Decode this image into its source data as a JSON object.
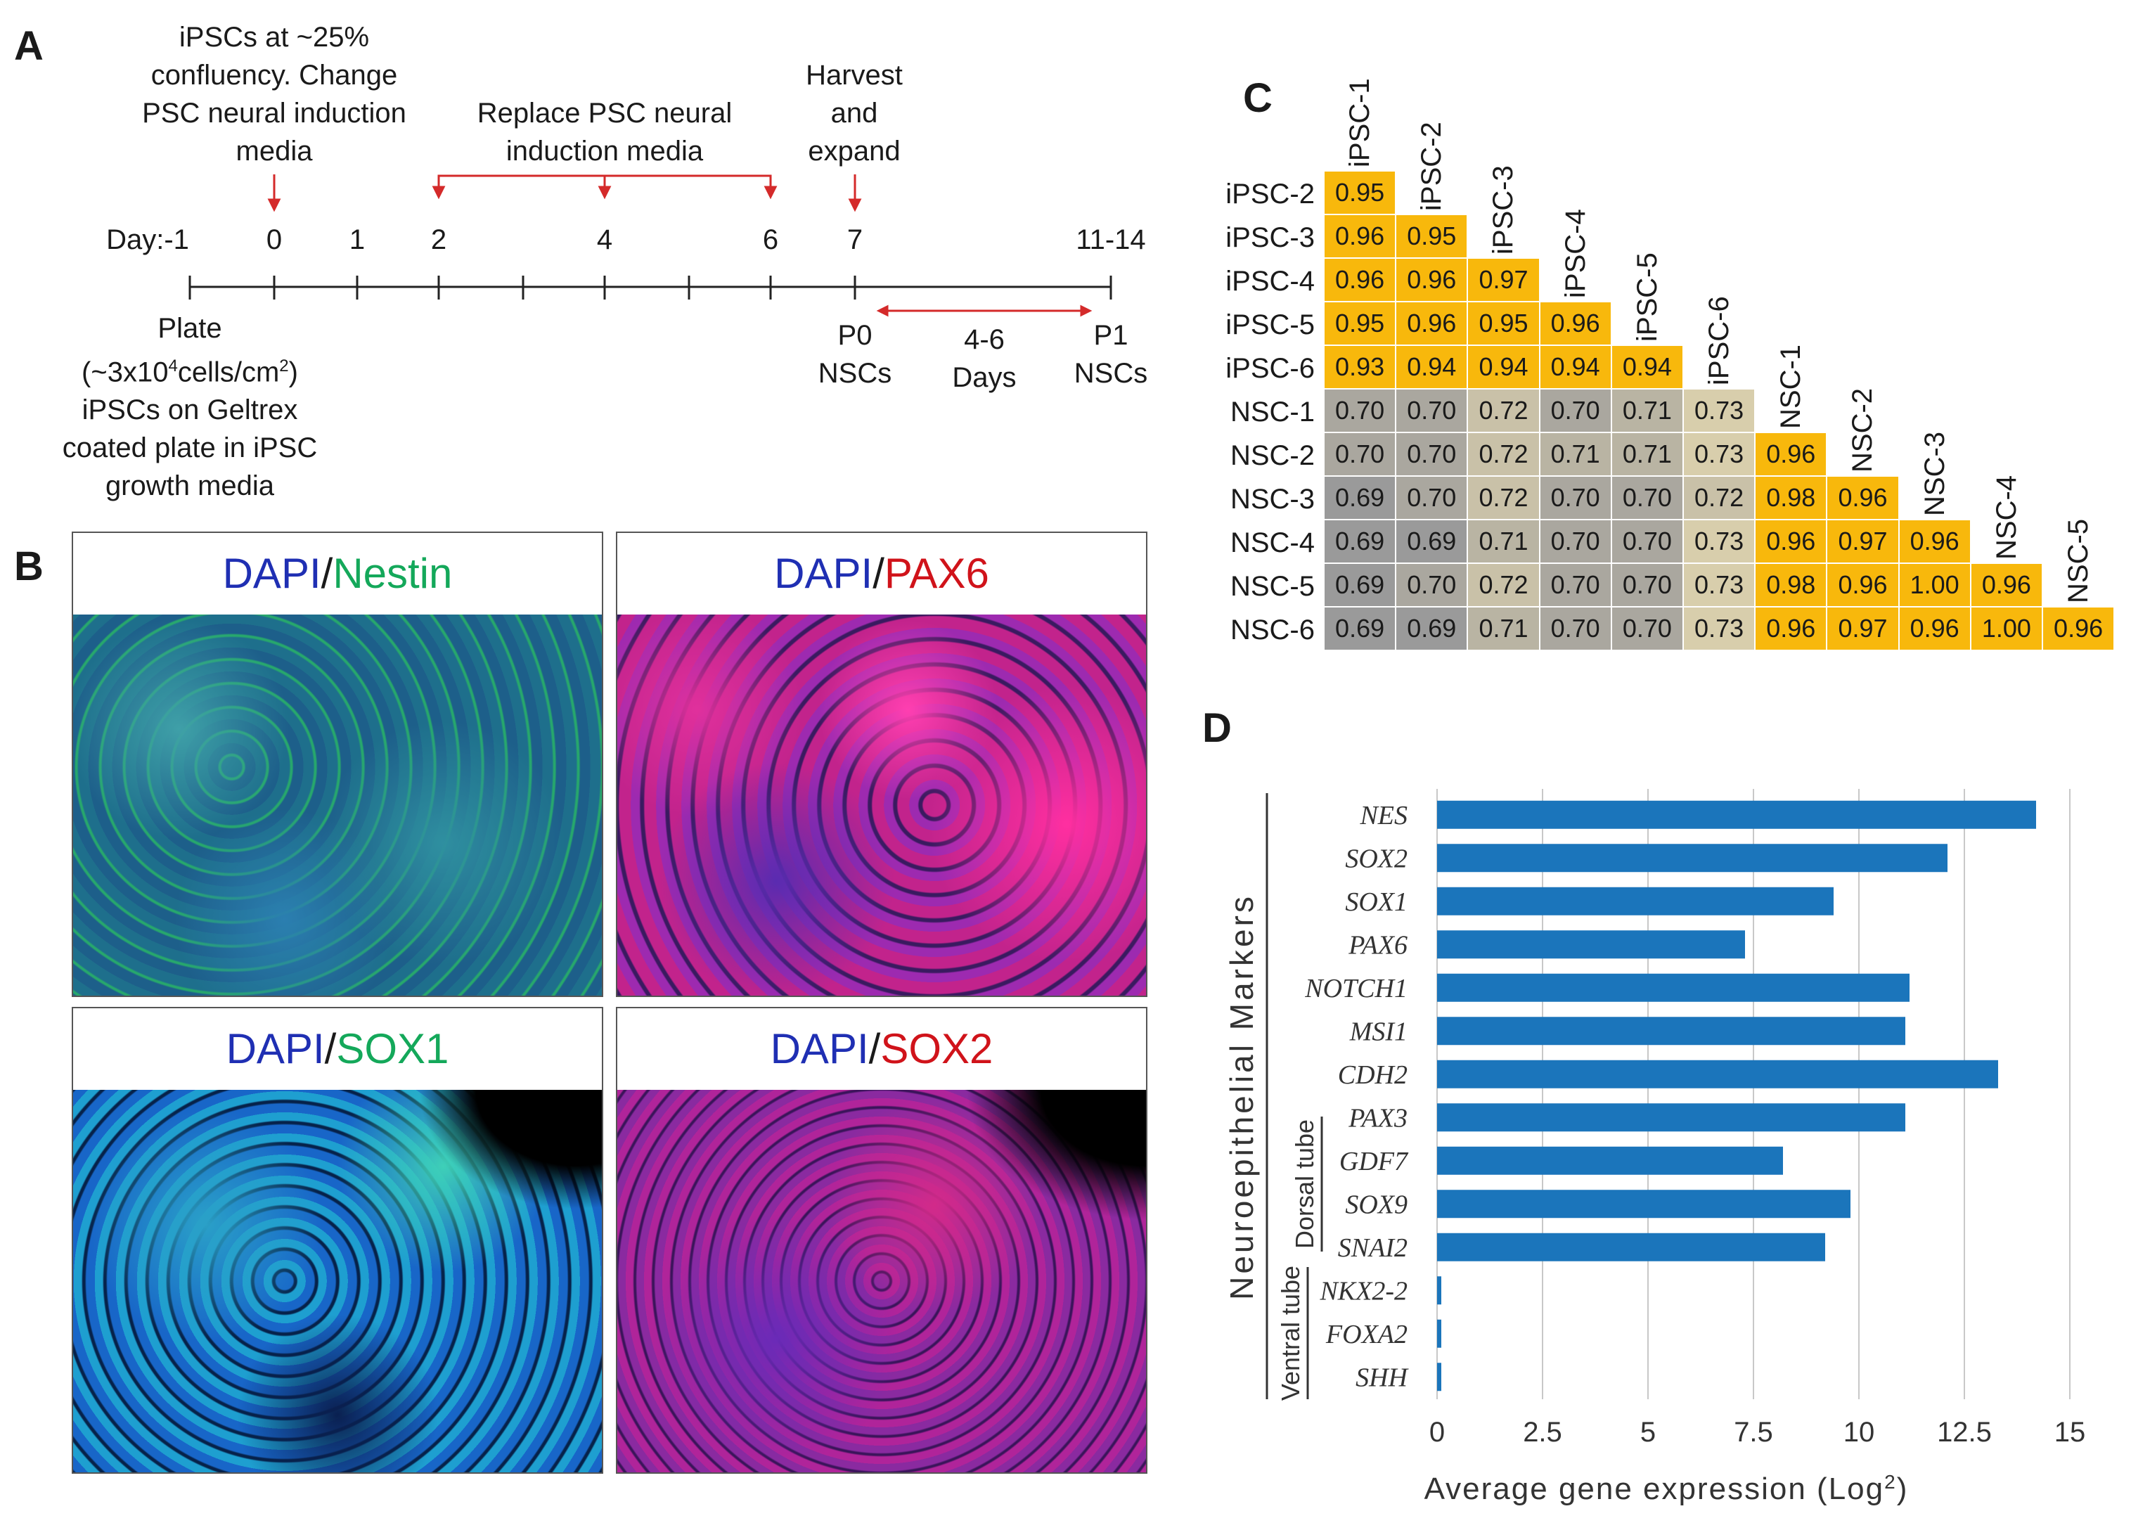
{
  "panel_labels": {
    "a": "A",
    "b": "B",
    "c": "C",
    "d": "D"
  },
  "timeline": {
    "note_day0": [
      "iPSCs  at ~25%",
      "confluency. Change",
      "PSC neural induction",
      "media"
    ],
    "note_replace": [
      "Replace PSC neural",
      "induction media"
    ],
    "note_harvest": [
      "Harvest",
      "and",
      "expand"
    ],
    "day_labels": [
      "Day:-1",
      "0",
      "1",
      "2",
      "4",
      "6",
      "7",
      "11-14"
    ],
    "plate_note": [
      "Plate",
      "(~3x10",
      "4",
      "cells/cm",
      "2",
      ")",
      "iPSCs on Geltrex",
      "coated plate in iPSC",
      "growth media"
    ],
    "p0": [
      "P0",
      "NSCs"
    ],
    "days_note": [
      "4-6",
      "Days"
    ],
    "p1": [
      "P1",
      "NSCs"
    ]
  },
  "micrographs": [
    {
      "prefix": "DAPI",
      "sep": "/",
      "marker": "Nestin",
      "color": "green"
    },
    {
      "prefix": "DAPI",
      "sep": "/",
      "marker": "PAX6",
      "color": "red"
    },
    {
      "prefix": "DAPI",
      "sep": "/",
      "marker": "SOX1",
      "color": "green"
    },
    {
      "prefix": "DAPI",
      "sep": "/",
      "marker": "SOX2",
      "color": "red"
    }
  ],
  "correlation": {
    "col_labels": [
      "iPSC-1",
      "iPSC-2",
      "iPSC-3",
      "iPSC-4",
      "iPSC-5",
      "iPSC-6",
      "NSC-1",
      "NSC-2",
      "NSC-3",
      "NSC-4",
      "NSC-5"
    ],
    "row_labels": [
      "iPSC-2",
      "iPSC-3",
      "iPSC-4",
      "iPSC-5",
      "iPSC-6",
      "NSC-1",
      "NSC-2",
      "NSC-3",
      "NSC-4",
      "NSC-5",
      "NSC-6"
    ],
    "values": [
      [
        "0.95"
      ],
      [
        "0.96",
        "0.95"
      ],
      [
        "0.96",
        "0.96",
        "0.97"
      ],
      [
        "0.95",
        "0.96",
        "0.95",
        "0.96"
      ],
      [
        "0.93",
        "0.94",
        "0.94",
        "0.94",
        "0.94"
      ],
      [
        "0.70",
        "0.70",
        "0.72",
        "0.70",
        "0.71",
        "0.73"
      ],
      [
        "0.70",
        "0.70",
        "0.72",
        "0.71",
        "0.71",
        "0.73",
        "0.96"
      ],
      [
        "0.69",
        "0.70",
        "0.72",
        "0.70",
        "0.70",
        "0.72",
        "0.98",
        "0.96"
      ],
      [
        "0.69",
        "0.69",
        "0.71",
        "0.70",
        "0.70",
        "0.73",
        "0.96",
        "0.97",
        "0.96"
      ],
      [
        "0.69",
        "0.70",
        "0.72",
        "0.70",
        "0.70",
        "0.73",
        "0.98",
        "0.96",
        "1.00",
        "0.96"
      ],
      [
        "0.69",
        "0.69",
        "0.71",
        "0.70",
        "0.70",
        "0.73",
        "0.96",
        "0.97",
        "0.96",
        "1.00",
        "0.96"
      ]
    ],
    "colors": {
      "high": "#f8b80c",
      "low_dark": "#9a9a9a",
      "low_light": "#cfc6ae"
    }
  },
  "chart_data": {
    "type": "bar",
    "orientation": "horizontal",
    "categories": [
      "NES",
      "SOX2",
      "SOX1",
      "PAX6",
      "NOTCH1",
      "MSI1",
      "CDH2",
      "PAX3",
      "GDF7",
      "SOX9",
      "SNAI2",
      "NKX2-2",
      "FOXA2",
      "SHH"
    ],
    "values": [
      14.2,
      12.1,
      9.4,
      7.3,
      11.2,
      11.1,
      13.3,
      11.1,
      8.2,
      9.8,
      9.2,
      0.1,
      0.1,
      0.1
    ],
    "xlim": [
      0,
      15
    ],
    "xticks": [
      "0",
      "2.5",
      "5",
      "7.5",
      "10",
      "12.5",
      "15"
    ],
    "xlabel": "Average gene expression (Log",
    "xlabel_sup": "2",
    "xlabel_end": ")",
    "group_main": "Neuroepithelial Markers",
    "group_dorsal": "Dorsal tube",
    "group_ventral": "Ventral tube",
    "bar_color": "#1b75bb",
    "grid": true
  }
}
